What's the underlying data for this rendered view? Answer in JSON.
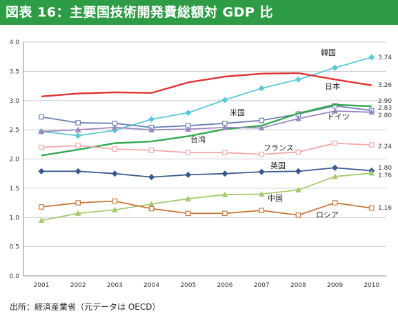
{
  "title": "図表 16：主要国技術開発費総額対 GDP 比",
  "source": "出所：経済産業省（元データは OECD）",
  "colors": {
    "title_bg": "#2e9c46",
    "title_text": "#ffffff",
    "grid": "#bdbdbd",
    "axis": "#888888"
  },
  "chart_data": {
    "type": "line",
    "title": "図表 16：主要国技術開発費総額対 GDP 比",
    "xlabel": "",
    "ylabel": "",
    "x": [
      "2001",
      "2002",
      "2003",
      "2004",
      "2005",
      "2006",
      "2007",
      "2008",
      "2009",
      "2010"
    ],
    "y_ticks": [
      "0.0",
      "0.5",
      "1.0",
      "1.5",
      "2.0",
      "2.5",
      "3.0",
      "3.5",
      "4.0"
    ],
    "ylim": [
      0,
      4
    ],
    "grid": true,
    "legend": "inline labels",
    "series": [
      {
        "name": "韓国",
        "color": "#5bc8d6",
        "marker": "diamond",
        "end_label": "3.74",
        "values": [
          2.47,
          2.4,
          2.49,
          2.68,
          2.79,
          3.01,
          3.21,
          3.36,
          3.56,
          3.74
        ]
      },
      {
        "name": "日本",
        "color": "#e03030",
        "marker": "none",
        "end_label": "3.26",
        "values": [
          3.07,
          3.12,
          3.14,
          3.13,
          3.31,
          3.41,
          3.46,
          3.47,
          3.36,
          3.26
        ]
      },
      {
        "name": "米国",
        "color": "#6a7fb0",
        "marker": "square",
        "end_label": "2.83",
        "values": [
          2.72,
          2.62,
          2.61,
          2.54,
          2.57,
          2.61,
          2.66,
          2.77,
          2.91,
          2.83
        ]
      },
      {
        "name": "台湾",
        "color": "#33a853",
        "marker": "none",
        "end_label": "2.90",
        "values": [
          2.06,
          2.16,
          2.27,
          2.3,
          2.39,
          2.51,
          2.57,
          2.78,
          2.93,
          2.9
        ]
      },
      {
        "name": "ドイツ",
        "color": "#9b87c0",
        "marker": "triangle",
        "end_label": "2.80",
        "values": [
          2.47,
          2.5,
          2.54,
          2.5,
          2.51,
          2.54,
          2.53,
          2.69,
          2.82,
          2.8
        ]
      },
      {
        "name": "フランス",
        "color": "#f0a8a8",
        "marker": "square",
        "end_label": "2.24",
        "values": [
          2.2,
          2.23,
          2.17,
          2.15,
          2.11,
          2.11,
          2.08,
          2.12,
          2.27,
          2.24
        ]
      },
      {
        "name": "英国",
        "color": "#3a5a8c",
        "marker": "diamond",
        "end_label": "1.80",
        "values": [
          1.79,
          1.79,
          1.75,
          1.69,
          1.73,
          1.75,
          1.78,
          1.79,
          1.85,
          1.8
        ]
      },
      {
        "name": "中国",
        "color": "#a7c96e",
        "marker": "triangle",
        "end_label": "1.76",
        "values": [
          0.95,
          1.07,
          1.13,
          1.23,
          1.32,
          1.39,
          1.4,
          1.47,
          1.7,
          1.76
        ]
      },
      {
        "name": "ロシア",
        "color": "#c8773a",
        "marker": "square",
        "end_label": "1.16",
        "values": [
          1.18,
          1.25,
          1.28,
          1.15,
          1.07,
          1.07,
          1.12,
          1.04,
          1.25,
          1.16
        ]
      }
    ]
  }
}
